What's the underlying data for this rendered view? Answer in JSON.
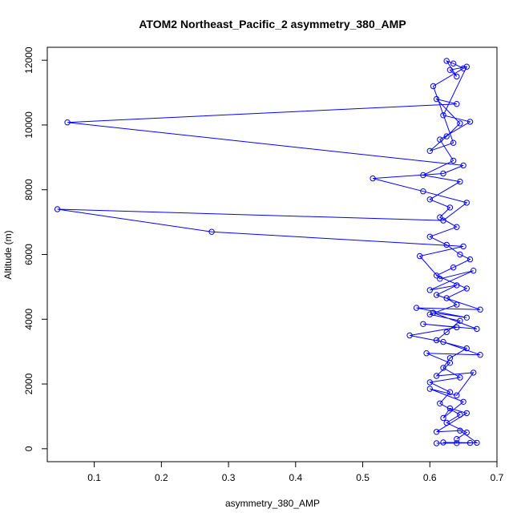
{
  "chart_data": {
    "type": "scatter",
    "title": "ATOM2 Northeast_Pacific_2 asymmetry_380_AMP",
    "xlabel": "asymmetry_380_AMP",
    "ylabel": "Altitude (m)",
    "xlim": [
      0.03,
      0.7
    ],
    "ylim": [
      -400,
      12400
    ],
    "x_ticks": [
      "0.1",
      "0.2",
      "0.3",
      "0.4",
      "0.5",
      "0.6",
      "0.7"
    ],
    "y_ticks": [
      "0",
      "2000",
      "4000",
      "6000",
      "8000",
      "10000",
      "12000"
    ],
    "grid": false,
    "legend": "none",
    "connected": true,
    "marker": "open-circle",
    "color": "#0000ff",
    "points": [
      [
        0.66,
        180
      ],
      [
        0.61,
        170
      ],
      [
        0.64,
        175
      ],
      [
        0.62,
        195
      ],
      [
        0.67,
        185
      ],
      [
        0.645,
        560
      ],
      [
        0.61,
        520
      ],
      [
        0.655,
        1100
      ],
      [
        0.63,
        1250
      ],
      [
        0.62,
        950
      ],
      [
        0.65,
        1450
      ],
      [
        0.6,
        1850
      ],
      [
        0.64,
        1650
      ],
      [
        0.665,
        2350
      ],
      [
        0.61,
        2250
      ],
      [
        0.63,
        2650
      ],
      [
        0.595,
        2950
      ],
      [
        0.675,
        2900
      ],
      [
        0.62,
        3300
      ],
      [
        0.57,
        3500
      ],
      [
        0.64,
        3750
      ],
      [
        0.59,
        3850
      ],
      [
        0.67,
        3700
      ],
      [
        0.605,
        4200
      ],
      [
        0.655,
        4050
      ],
      [
        0.58,
        4350
      ],
      [
        0.675,
        4300
      ],
      [
        0.61,
        4750
      ],
      [
        0.64,
        5050
      ],
      [
        0.6,
        4900
      ],
      [
        0.665,
        5500
      ],
      [
        0.615,
        5250
      ],
      [
        0.585,
        5950
      ],
      [
        0.65,
        6250
      ],
      [
        0.275,
        6700
      ],
      [
        0.045,
        7400
      ],
      [
        0.62,
        7050
      ],
      [
        0.655,
        7600
      ],
      [
        0.59,
        7950
      ],
      [
        0.515,
        8350
      ],
      [
        0.62,
        8500
      ],
      [
        0.65,
        8750
      ],
      [
        0.06,
        10080
      ],
      [
        0.64,
        10650
      ],
      [
        0.61,
        10800
      ],
      [
        0.645,
        10050
      ],
      [
        0.625,
        9650
      ],
      [
        0.6,
        9200
      ],
      [
        0.635,
        9450
      ],
      [
        0.605,
        11200
      ],
      [
        0.65,
        11750
      ],
      [
        0.635,
        11900
      ],
      [
        0.625,
        11980
      ],
      [
        0.64,
        11500
      ],
      [
        0.63,
        11700
      ],
      [
        0.655,
        11800
      ],
      [
        0.62,
        10300
      ],
      [
        0.66,
        10100
      ],
      [
        0.615,
        9550
      ],
      [
        0.635,
        8900
      ],
      [
        0.59,
        8450
      ],
      [
        0.645,
        8250
      ],
      [
        0.6,
        7700
      ],
      [
        0.63,
        7450
      ],
      [
        0.615,
        7150
      ],
      [
        0.64,
        6850
      ],
      [
        0.6,
        6550
      ],
      [
        0.625,
        6300
      ],
      [
        0.645,
        6000
      ],
      [
        0.66,
        5850
      ],
      [
        0.635,
        5600
      ],
      [
        0.61,
        5350
      ],
      [
        0.655,
        4950
      ],
      [
        0.625,
        4650
      ],
      [
        0.64,
        4450
      ],
      [
        0.6,
        4150
      ],
      [
        0.645,
        3950
      ],
      [
        0.625,
        3600
      ],
      [
        0.61,
        3350
      ],
      [
        0.655,
        3100
      ],
      [
        0.63,
        2800
      ],
      [
        0.62,
        2500
      ],
      [
        0.645,
        2200
      ],
      [
        0.6,
        2050
      ],
      [
        0.63,
        1750
      ],
      [
        0.615,
        1400
      ],
      [
        0.645,
        1050
      ],
      [
        0.625,
        800
      ],
      [
        0.655,
        500
      ],
      [
        0.64,
        300
      ]
    ]
  }
}
